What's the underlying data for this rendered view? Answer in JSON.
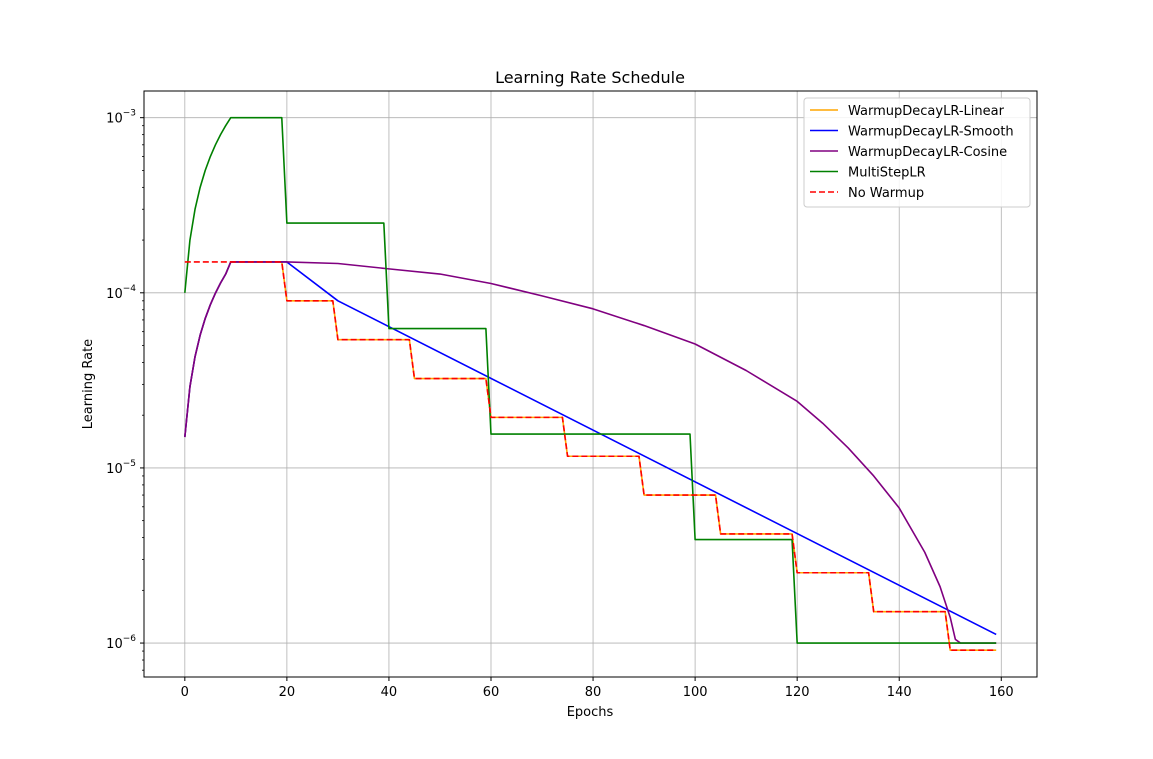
{
  "chart_data": {
    "type": "line",
    "title": "Learning Rate Schedule",
    "xlabel": "Epochs",
    "ylabel": "Learning Rate",
    "xlim": [
      -8,
      167
    ],
    "ylim": [
      6.4e-07,
      0.00142
    ],
    "yscale": "log",
    "grid": true,
    "legend_position": "top-right",
    "x_ticks": [
      0,
      20,
      40,
      60,
      80,
      100,
      120,
      140,
      160
    ],
    "x_tick_labels": [
      "0",
      "20",
      "40",
      "60",
      "80",
      "100",
      "120",
      "140",
      "160"
    ],
    "y_ticks": [
      1e-06,
      1e-05,
      0.0001,
      0.001
    ],
    "y_tick_labels": [
      {
        "base": "10",
        "exp": "−6"
      },
      {
        "base": "10",
        "exp": "−5"
      },
      {
        "base": "10",
        "exp": "−4"
      },
      {
        "base": "10",
        "exp": "−3"
      }
    ],
    "series": [
      {
        "name": "WarmupDecayLR-Linear",
        "color": "#ffa500",
        "dashed": false,
        "x": [
          0,
          1,
          2,
          3,
          4,
          5,
          6,
          7,
          8,
          9,
          19,
          20,
          29,
          30,
          44,
          45,
          59,
          60,
          74,
          75,
          89,
          90,
          104,
          105,
          119,
          120,
          134,
          135,
          149,
          150,
          159
        ],
        "y": [
          1.5e-05,
          2.91e-05,
          4.32e-05,
          5.73e-05,
          7.14e-05,
          8.55e-05,
          9.96e-05,
          0.0001137,
          0.0001278,
          0.00015,
          0.00015,
          9e-05,
          9e-05,
          5.4e-05,
          5.4e-05,
          3.24e-05,
          3.24e-05,
          1.944e-05,
          1.944e-05,
          1.166e-05,
          1.166e-05,
          7e-06,
          7e-06,
          4.2e-06,
          4.2e-06,
          2.52e-06,
          2.52e-06,
          1.51e-06,
          1.51e-06,
          9.1e-07,
          9.1e-07
        ]
      },
      {
        "name": "WarmupDecayLR-Smooth",
        "color": "#0000ff",
        "dashed": false,
        "x": [
          0,
          1,
          2,
          3,
          4,
          5,
          6,
          7,
          8,
          9,
          20,
          30,
          159
        ],
        "y": [
          1.5e-05,
          2.91e-05,
          4.32e-05,
          5.73e-05,
          7.14e-05,
          8.55e-05,
          9.96e-05,
          0.0001137,
          0.0001278,
          0.00015,
          0.00015,
          9e-05,
          1.12e-06
        ]
      },
      {
        "name": "WarmupDecayLR-Cosine",
        "color": "#800080",
        "dashed": false,
        "x": [
          0,
          1,
          2,
          3,
          4,
          5,
          6,
          7,
          8,
          9,
          20,
          30,
          40,
          50,
          60,
          70,
          80,
          90,
          100,
          110,
          120,
          125,
          130,
          135,
          140,
          145,
          148,
          150,
          151,
          152,
          153,
          159
        ],
        "y": [
          1.5e-05,
          2.91e-05,
          4.32e-05,
          5.73e-05,
          7.14e-05,
          8.55e-05,
          9.96e-05,
          0.0001137,
          0.0001278,
          0.00015,
          0.00015,
          0.000147,
          0.000137,
          0.000128,
          0.000113,
          9.6e-05,
          8.1e-05,
          6.5e-05,
          5.1e-05,
          3.6e-05,
          2.4e-05,
          1.8e-05,
          1.3e-05,
          9e-06,
          5.9e-06,
          3.3e-06,
          2.1e-06,
          1.4e-06,
          1.05e-06,
          1e-06,
          1e-06,
          1e-06
        ]
      },
      {
        "name": "MultiStepLR",
        "color": "#008000",
        "dashed": false,
        "x": [
          0,
          1,
          2,
          3,
          4,
          5,
          6,
          7,
          8,
          9,
          19,
          20,
          39,
          40,
          59,
          60,
          99,
          100,
          119,
          120,
          159
        ],
        "y": [
          0.0001,
          0.0002,
          0.0003,
          0.0004,
          0.0005,
          0.0006,
          0.0007,
          0.0008,
          0.0009,
          0.001,
          0.001,
          0.00025,
          0.00025,
          6.25e-05,
          6.25e-05,
          1.56e-05,
          1.56e-05,
          3.9e-06,
          3.9e-06,
          1e-06,
          1e-06
        ]
      },
      {
        "name": "No Warmup",
        "color": "#ff0000",
        "dashed": true,
        "x": [
          0,
          19,
          20,
          29,
          30,
          44,
          45,
          59,
          60,
          74,
          75,
          89,
          90,
          104,
          105,
          119,
          120,
          134,
          135,
          149,
          150,
          159
        ],
        "y": [
          0.00015,
          0.00015,
          9e-05,
          9e-05,
          5.4e-05,
          5.4e-05,
          3.24e-05,
          3.24e-05,
          1.944e-05,
          1.944e-05,
          1.166e-05,
          1.166e-05,
          7e-06,
          7e-06,
          4.2e-06,
          4.2e-06,
          2.52e-06,
          2.52e-06,
          1.51e-06,
          1.51e-06,
          9.1e-07,
          9.1e-07
        ]
      }
    ]
  }
}
